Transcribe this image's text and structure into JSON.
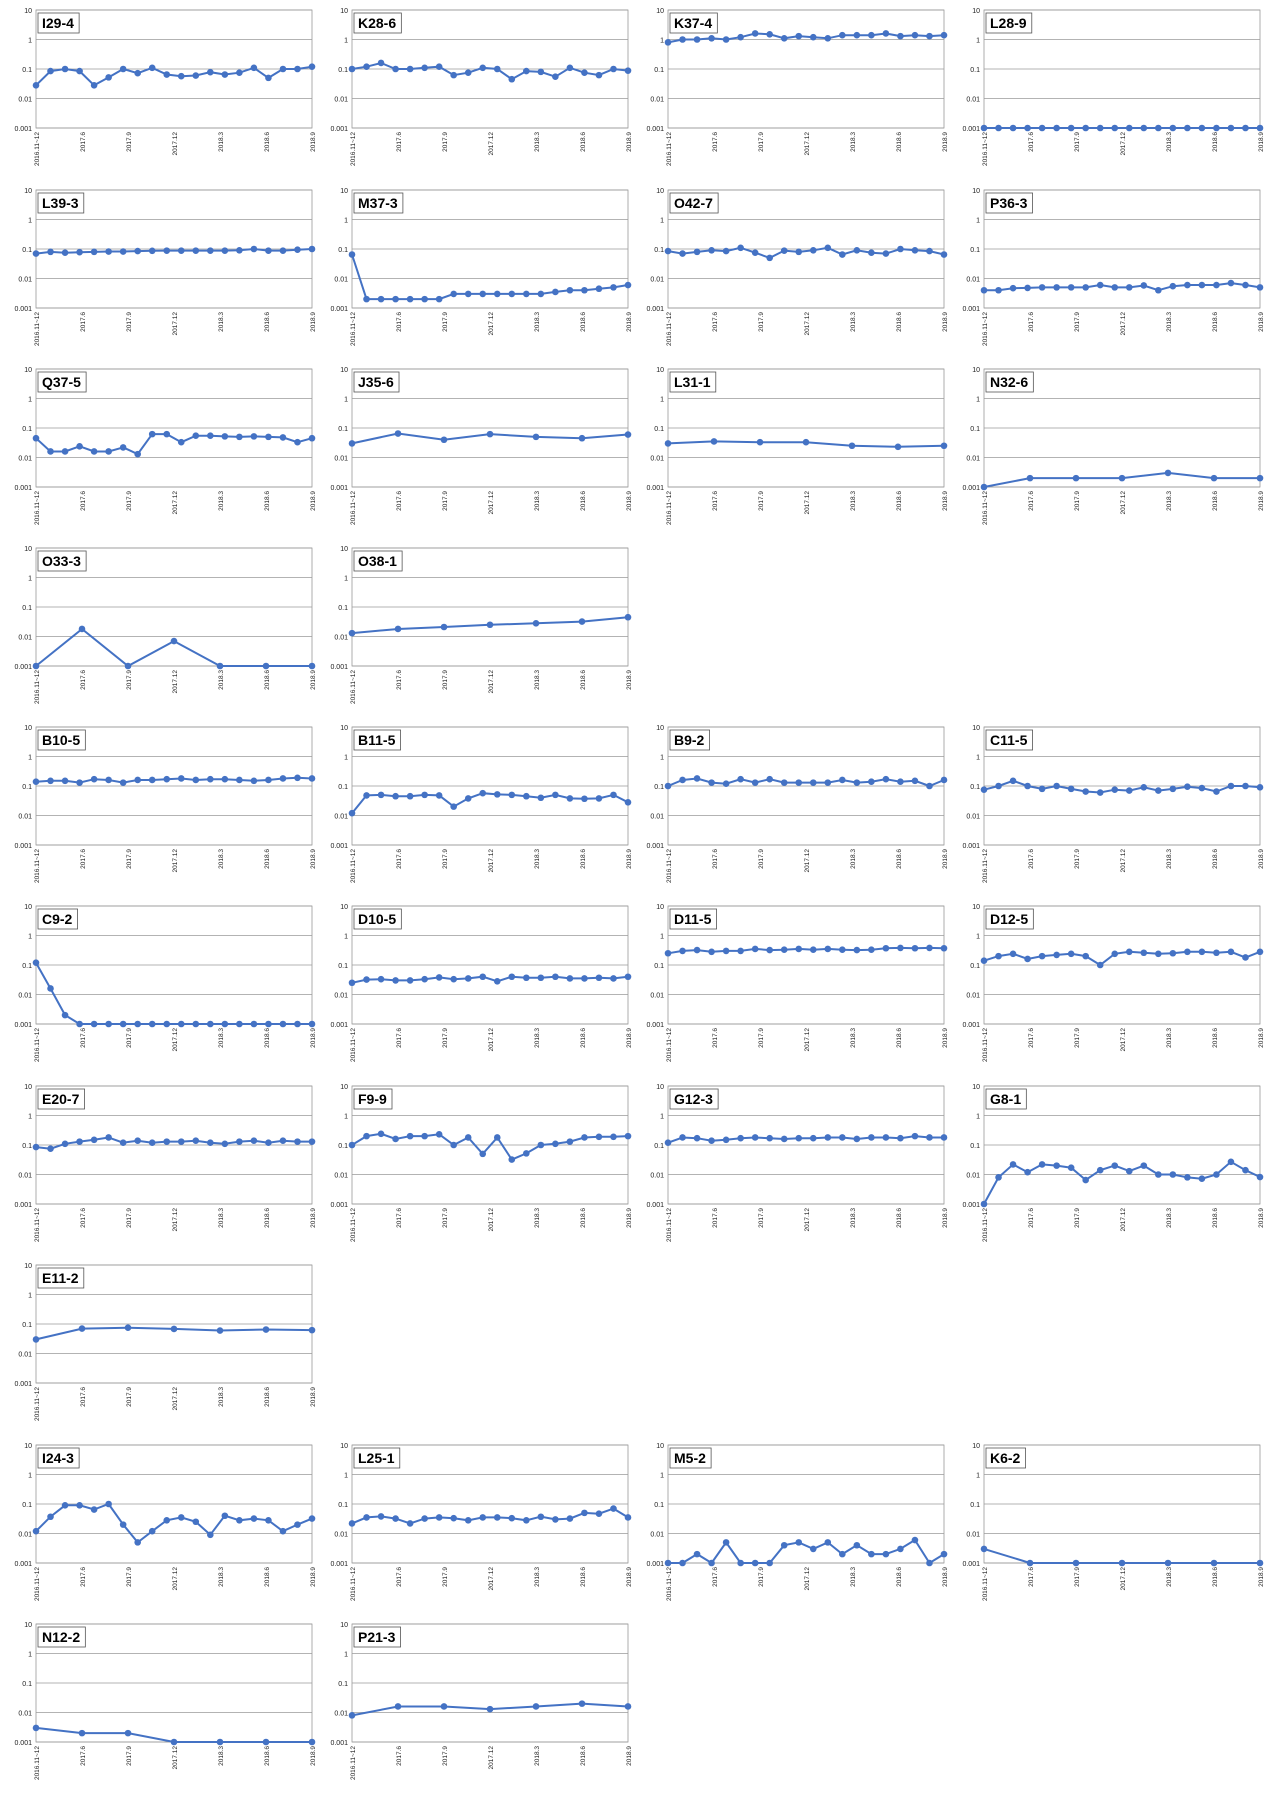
{
  "axis_defaults": {
    "y_ticks": [
      "10",
      "1",
      "0.1",
      "0.01",
      "0.001"
    ],
    "x_ticks": [
      "2016.11~12",
      "2017.6",
      "2017.9",
      "2017.12",
      "2018.3",
      "2018.6",
      "2018.9"
    ],
    "y_scale": "log",
    "ylim": [
      0.001,
      10
    ],
    "grid": true,
    "series_color": "#4472C4"
  },
  "chart_data": [
    {
      "type": "line",
      "title": "I29-4",
      "row": 0,
      "col": 0,
      "n": 20,
      "values": [
        0.028,
        0.085,
        0.1,
        0.085,
        0.028,
        0.052,
        0.1,
        0.072,
        0.11,
        0.065,
        0.057,
        0.06,
        0.078,
        0.065,
        0.075,
        0.11,
        0.05,
        0.1,
        0.1,
        0.12
      ]
    },
    {
      "type": "line",
      "title": "K28-6",
      "row": 0,
      "col": 1,
      "n": 20,
      "values": [
        0.1,
        0.12,
        0.16,
        0.1,
        0.1,
        0.11,
        0.12,
        0.062,
        0.075,
        0.11,
        0.1,
        0.045,
        0.085,
        0.08,
        0.055,
        0.11,
        0.075,
        0.062,
        0.1,
        0.088
      ]
    },
    {
      "type": "line",
      "title": "K37-4",
      "row": 0,
      "col": 2,
      "n": 20,
      "values": [
        0.8,
        1.0,
        1.0,
        1.1,
        1.0,
        1.2,
        1.6,
        1.5,
        1.1,
        1.3,
        1.2,
        1.1,
        1.4,
        1.4,
        1.4,
        1.6,
        1.3,
        1.4,
        1.3,
        1.4
      ]
    },
    {
      "type": "line",
      "title": "L28-9",
      "row": 0,
      "col": 3,
      "n": 20,
      "values": [
        0.001,
        0.001,
        0.001,
        0.001,
        0.001,
        0.001,
        0.001,
        0.001,
        0.001,
        0.001,
        0.001,
        0.001,
        0.001,
        0.001,
        0.001,
        0.001,
        0.001,
        0.001,
        0.001,
        0.001
      ]
    },
    {
      "type": "line",
      "title": "L39-3",
      "row": 1,
      "col": 0,
      "n": 20,
      "values": [
        0.07,
        0.08,
        0.075,
        0.078,
        0.08,
        0.082,
        0.082,
        0.085,
        0.087,
        0.088,
        0.088,
        0.088,
        0.088,
        0.088,
        0.09,
        0.1,
        0.088,
        0.088,
        0.095,
        0.1
      ]
    },
    {
      "type": "line",
      "title": "M37-3",
      "row": 1,
      "col": 1,
      "n": 20,
      "values": [
        0.065,
        0.002,
        0.002,
        0.002,
        0.002,
        0.002,
        0.002,
        0.003,
        0.003,
        0.003,
        0.003,
        0.003,
        0.003,
        0.003,
        0.0035,
        0.004,
        0.004,
        0.0045,
        0.005,
        0.006
      ]
    },
    {
      "type": "line",
      "title": "O42-7",
      "row": 1,
      "col": 2,
      "n": 20,
      "values": [
        0.085,
        0.07,
        0.08,
        0.09,
        0.085,
        0.11,
        0.075,
        0.05,
        0.088,
        0.08,
        0.09,
        0.11,
        0.065,
        0.09,
        0.075,
        0.07,
        0.1,
        0.09,
        0.085,
        0.065
      ]
    },
    {
      "type": "line",
      "title": "P36-3",
      "row": 1,
      "col": 3,
      "n": 20,
      "values": [
        0.004,
        0.004,
        0.0047,
        0.0048,
        0.005,
        0.005,
        0.005,
        0.005,
        0.006,
        0.005,
        0.005,
        0.0058,
        0.004,
        0.0055,
        0.006,
        0.006,
        0.006,
        0.007,
        0.006,
        0.005
      ]
    },
    {
      "type": "line",
      "title": "Q37-5",
      "row": 2,
      "col": 0,
      "n": 20,
      "values": [
        0.045,
        0.016,
        0.016,
        0.024,
        0.016,
        0.016,
        0.022,
        0.013,
        0.062,
        0.062,
        0.033,
        0.055,
        0.055,
        0.052,
        0.05,
        0.052,
        0.05,
        0.048,
        0.033,
        0.045
      ]
    },
    {
      "type": "line",
      "title": "J35-6",
      "row": 2,
      "col": 1,
      "n": 7,
      "values": [
        0.03,
        0.065,
        0.04,
        0.062,
        0.05,
        0.045,
        0.06
      ]
    },
    {
      "type": "line",
      "title": "L31-1",
      "row": 2,
      "col": 2,
      "n": 7,
      "values": [
        0.03,
        0.035,
        0.033,
        0.033,
        0.025,
        0.023,
        0.025
      ]
    },
    {
      "type": "line",
      "title": "N32-6",
      "row": 2,
      "col": 3,
      "n": 7,
      "values": [
        0.001,
        0.002,
        0.002,
        0.002,
        0.003,
        0.002,
        0.002
      ]
    },
    {
      "type": "line",
      "title": "O33-3",
      "row": 3,
      "col": 0,
      "n": 7,
      "values": [
        0.001,
        0.018,
        0.001,
        0.007,
        0.001,
        0.001,
        0.001
      ]
    },
    {
      "type": "line",
      "title": "O38-1",
      "row": 3,
      "col": 1,
      "n": 7,
      "values": [
        0.013,
        0.018,
        0.021,
        0.025,
        0.028,
        0.032,
        0.045
      ]
    },
    {
      "type": "line",
      "title": "B10-5",
      "row": 4,
      "col": 0,
      "n": 20,
      "values": [
        0.14,
        0.15,
        0.15,
        0.13,
        0.17,
        0.16,
        0.13,
        0.16,
        0.16,
        0.17,
        0.18,
        0.16,
        0.17,
        0.17,
        0.16,
        0.15,
        0.16,
        0.18,
        0.19,
        0.18
      ]
    },
    {
      "type": "line",
      "title": "B11-5",
      "row": 4,
      "col": 1,
      "n": 20,
      "values": [
        0.012,
        0.048,
        0.05,
        0.045,
        0.045,
        0.05,
        0.048,
        0.02,
        0.038,
        0.057,
        0.052,
        0.05,
        0.045,
        0.04,
        0.05,
        0.038,
        0.037,
        0.038,
        0.05,
        0.028
      ]
    },
    {
      "type": "line",
      "title": "B9-2",
      "row": 4,
      "col": 2,
      "n": 20,
      "values": [
        0.1,
        0.16,
        0.18,
        0.13,
        0.12,
        0.17,
        0.13,
        0.17,
        0.13,
        0.13,
        0.13,
        0.13,
        0.16,
        0.13,
        0.14,
        0.17,
        0.14,
        0.15,
        0.1,
        0.16
      ]
    },
    {
      "type": "line",
      "title": "C11-5",
      "row": 4,
      "col": 3,
      "n": 20,
      "values": [
        0.075,
        0.1,
        0.15,
        0.1,
        0.08,
        0.1,
        0.08,
        0.065,
        0.06,
        0.075,
        0.07,
        0.09,
        0.07,
        0.08,
        0.095,
        0.085,
        0.065,
        0.1,
        0.1,
        0.09
      ]
    },
    {
      "type": "line",
      "title": "C9-2",
      "row": 5,
      "col": 0,
      "n": 20,
      "values": [
        0.12,
        0.016,
        0.002,
        0.001,
        0.001,
        0.001,
        0.001,
        0.001,
        0.001,
        0.001,
        0.001,
        0.001,
        0.001,
        0.001,
        0.001,
        0.001,
        0.001,
        0.001,
        0.001,
        0.001
      ]
    },
    {
      "type": "line",
      "title": "D10-5",
      "row": 5,
      "col": 1,
      "n": 20,
      "values": [
        0.025,
        0.032,
        0.033,
        0.03,
        0.03,
        0.033,
        0.038,
        0.033,
        0.035,
        0.04,
        0.028,
        0.04,
        0.037,
        0.037,
        0.04,
        0.035,
        0.035,
        0.037,
        0.035,
        0.04
      ]
    },
    {
      "type": "line",
      "title": "D11-5",
      "row": 5,
      "col": 2,
      "n": 20,
      "values": [
        0.25,
        0.3,
        0.32,
        0.28,
        0.3,
        0.3,
        0.35,
        0.32,
        0.33,
        0.35,
        0.33,
        0.35,
        0.33,
        0.32,
        0.33,
        0.37,
        0.38,
        0.37,
        0.38,
        0.37
      ]
    },
    {
      "type": "line",
      "title": "D12-5",
      "row": 5,
      "col": 3,
      "n": 20,
      "values": [
        0.14,
        0.2,
        0.24,
        0.16,
        0.2,
        0.22,
        0.24,
        0.2,
        0.1,
        0.24,
        0.28,
        0.26,
        0.24,
        0.25,
        0.28,
        0.28,
        0.26,
        0.28,
        0.18,
        0.28
      ]
    },
    {
      "type": "line",
      "title": "E20-7",
      "row": 6,
      "col": 0,
      "n": 20,
      "values": [
        0.085,
        0.075,
        0.11,
        0.13,
        0.15,
        0.18,
        0.12,
        0.14,
        0.12,
        0.13,
        0.13,
        0.14,
        0.12,
        0.11,
        0.13,
        0.14,
        0.12,
        0.14,
        0.13,
        0.13
      ]
    },
    {
      "type": "line",
      "title": "F9-9",
      "row": 6,
      "col": 1,
      "n": 20,
      "values": [
        0.1,
        0.2,
        0.24,
        0.16,
        0.2,
        0.2,
        0.23,
        0.1,
        0.18,
        0.05,
        0.18,
        0.032,
        0.052,
        0.1,
        0.11,
        0.13,
        0.18,
        0.19,
        0.19,
        0.2
      ]
    },
    {
      "type": "line",
      "title": "G12-3",
      "row": 6,
      "col": 2,
      "n": 20,
      "values": [
        0.12,
        0.18,
        0.17,
        0.14,
        0.15,
        0.17,
        0.18,
        0.17,
        0.16,
        0.17,
        0.17,
        0.18,
        0.18,
        0.16,
        0.18,
        0.18,
        0.17,
        0.2,
        0.18,
        0.18
      ]
    },
    {
      "type": "line",
      "title": "G8-1",
      "row": 6,
      "col": 3,
      "n": 20,
      "values": [
        0.001,
        0.008,
        0.022,
        0.012,
        0.022,
        0.02,
        0.017,
        0.0065,
        0.014,
        0.02,
        0.013,
        0.02,
        0.01,
        0.01,
        0.008,
        0.0072,
        0.01,
        0.027,
        0.014,
        0.0082
      ]
    },
    {
      "type": "line",
      "title": "E11-2",
      "row": 7,
      "col": 0,
      "n": 7,
      "values": [
        0.03,
        0.07,
        0.075,
        0.068,
        0.06,
        0.065,
        0.062
      ]
    },
    {
      "type": "line",
      "title": "I24-3",
      "row": 8,
      "col": 0,
      "n": 20,
      "values": [
        0.012,
        0.037,
        0.09,
        0.09,
        0.065,
        0.1,
        0.02,
        0.005,
        0.012,
        0.028,
        0.035,
        0.025,
        0.009,
        0.04,
        0.028,
        0.032,
        0.028,
        0.012,
        0.02,
        0.032
      ]
    },
    {
      "type": "line",
      "title": "L25-1",
      "row": 8,
      "col": 1,
      "n": 20,
      "values": [
        0.022,
        0.035,
        0.038,
        0.032,
        0.022,
        0.032,
        0.035,
        0.033,
        0.028,
        0.035,
        0.035,
        0.033,
        0.028,
        0.037,
        0.03,
        0.032,
        0.05,
        0.047,
        0.07,
        0.035
      ]
    },
    {
      "type": "line",
      "title": "M5-2",
      "row": 8,
      "col": 2,
      "n": 20,
      "values": [
        0.001,
        0.001,
        0.002,
        0.001,
        0.005,
        0.001,
        0.001,
        0.001,
        0.004,
        0.005,
        0.003,
        0.005,
        0.002,
        0.004,
        0.002,
        0.002,
        0.003,
        0.006,
        0.001,
        0.002
      ]
    },
    {
      "type": "line",
      "title": "K6-2",
      "row": 8,
      "col": 3,
      "n": 7,
      "values": [
        0.003,
        0.001,
        0.001,
        0.001,
        0.001,
        0.001,
        0.001
      ]
    },
    {
      "type": "line",
      "title": "N12-2",
      "row": 9,
      "col": 0,
      "n": 7,
      "values": [
        0.003,
        0.002,
        0.002,
        0.001,
        0.001,
        0.001,
        0.001
      ]
    },
    {
      "type": "line",
      "title": "P21-3",
      "row": 9,
      "col": 1,
      "n": 7,
      "values": [
        0.008,
        0.016,
        0.016,
        0.013,
        0.016,
        0.02,
        0.016
      ]
    }
  ]
}
